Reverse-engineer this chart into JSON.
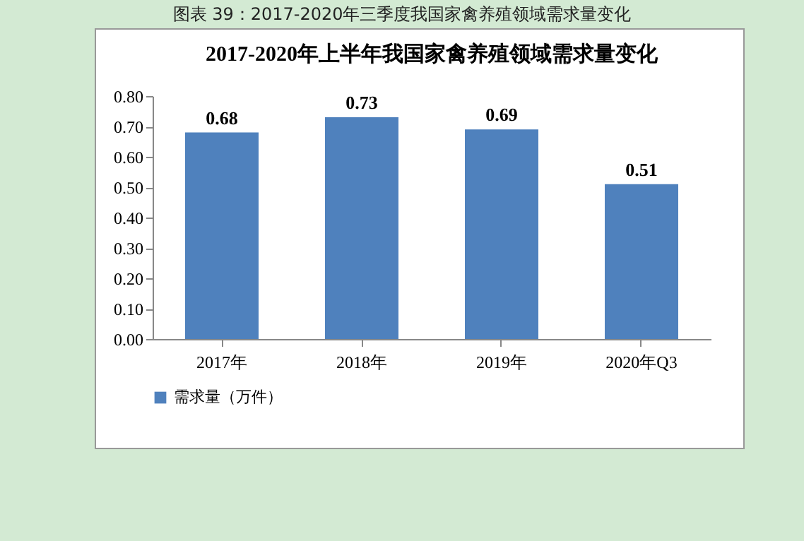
{
  "chart_data": {
    "type": "bar",
    "title": "2017-2020年上半年我国家禽养殖领域需求量变化",
    "annotations": [
      "图表 39：2017-2020年三季度我国家禽养殖领域需求量变化"
    ],
    "categories": [
      "2017年",
      "2018年",
      "2019年",
      "2020年Q3"
    ],
    "series": [
      {
        "name": "需求量（万件）",
        "color": "#4f81bd",
        "values": [
          0.68,
          0.73,
          0.69,
          0.51
        ]
      }
    ],
    "ylim": [
      0,
      0.8
    ],
    "yticks": [
      {
        "value": 0,
        "label": "0.00"
      },
      {
        "value": 0.1,
        "label": "0.10"
      },
      {
        "value": 0.2,
        "label": "0.20"
      },
      {
        "value": 0.3,
        "label": "0.30"
      },
      {
        "value": 0.4,
        "label": "0.40"
      },
      {
        "value": 0.5,
        "label": "0.50"
      },
      {
        "value": 0.6,
        "label": "0.60"
      },
      {
        "value": 0.7,
        "label": "0.70"
      },
      {
        "value": 0.8,
        "label": "0.80"
      }
    ],
    "data_labels": true,
    "legend": "bottom"
  }
}
